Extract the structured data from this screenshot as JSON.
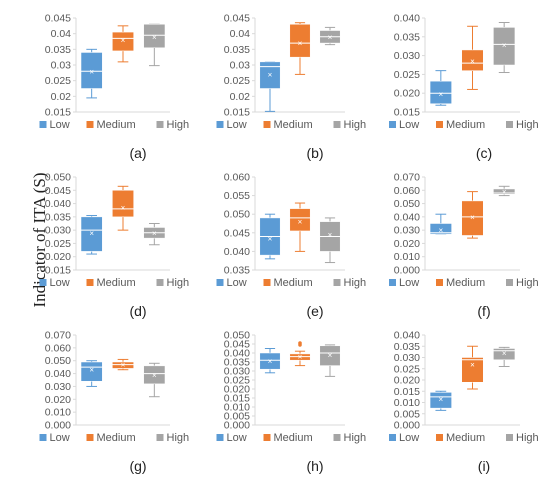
{
  "figure": {
    "y_axis_label": "Indicator of ITA (S)",
    "legend": [
      "Low",
      "Medium",
      "High"
    ]
  },
  "colors": {
    "Low": "#5b9bd5",
    "Medium": "#ed7d31",
    "High": "#a5a5a5",
    "axis": "#d9d9d9",
    "text": "#595959"
  },
  "chart_data": [
    {
      "type": "boxplot",
      "panel_label": "(a)",
      "categories": [
        "Low",
        "Medium",
        "High"
      ],
      "ylim": [
        0.015,
        0.045
      ],
      "yticks": [
        "0.015",
        "0.02",
        "0.025",
        "0.03",
        "0.035",
        "0.04",
        "0.045"
      ],
      "boxes": [
        {
          "name": "Low",
          "min": 0.0195,
          "q1": 0.0225,
          "median": 0.028,
          "q3": 0.034,
          "max": 0.035,
          "mean": 0.028
        },
        {
          "name": "Medium",
          "min": 0.031,
          "q1": 0.0345,
          "median": 0.0385,
          "q3": 0.0405,
          "max": 0.0425,
          "mean": 0.038
        },
        {
          "name": "High",
          "min": 0.0298,
          "q1": 0.0355,
          "median": 0.0395,
          "q3": 0.043,
          "max": 0.043,
          "mean": 0.039
        }
      ]
    },
    {
      "type": "boxplot",
      "panel_label": "(b)",
      "categories": [
        "Low",
        "Medium",
        "High"
      ],
      "ylim": [
        0.015,
        0.045
      ],
      "yticks": [
        "0.015",
        "0.02",
        "0.025",
        "0.03",
        "0.035",
        "0.04",
        "0.045"
      ],
      "boxes": [
        {
          "name": "Low",
          "min": 0.0152,
          "q1": 0.0225,
          "median": 0.0295,
          "q3": 0.031,
          "max": 0.031,
          "mean": 0.027
        },
        {
          "name": "Medium",
          "min": 0.027,
          "q1": 0.0325,
          "median": 0.037,
          "q3": 0.043,
          "max": 0.0435,
          "mean": 0.037
        },
        {
          "name": "High",
          "min": 0.0365,
          "q1": 0.037,
          "median": 0.039,
          "q3": 0.041,
          "max": 0.042,
          "mean": 0.039
        }
      ]
    },
    {
      "type": "boxplot",
      "panel_label": "(c)",
      "categories": [
        "Low",
        "Medium",
        "High"
      ],
      "ylim": [
        0.015,
        0.04
      ],
      "yticks": [
        "0.015",
        "0.020",
        "0.025",
        "0.030",
        "0.035",
        "0.040"
      ],
      "boxes": [
        {
          "name": "Low",
          "min": 0.0168,
          "q1": 0.0172,
          "median": 0.02,
          "q3": 0.0232,
          "max": 0.026,
          "mean": 0.0198
        },
        {
          "name": "Medium",
          "min": 0.021,
          "q1": 0.026,
          "median": 0.028,
          "q3": 0.0315,
          "max": 0.0378,
          "mean": 0.0285
        },
        {
          "name": "High",
          "min": 0.0255,
          "q1": 0.0275,
          "median": 0.033,
          "q3": 0.0375,
          "max": 0.0388,
          "mean": 0.0328
        }
      ]
    },
    {
      "type": "boxplot",
      "panel_label": "(d)",
      "categories": [
        "Low",
        "Medium",
        "High"
      ],
      "ylim": [
        0.015,
        0.05
      ],
      "yticks": [
        "0.015",
        "0.020",
        "0.025",
        "0.030",
        "0.035",
        "0.040",
        "0.045",
        "0.050"
      ],
      "boxes": [
        {
          "name": "Low",
          "min": 0.021,
          "q1": 0.022,
          "median": 0.03,
          "q3": 0.035,
          "max": 0.0355,
          "mean": 0.029
        },
        {
          "name": "Medium",
          "min": 0.03,
          "q1": 0.035,
          "median": 0.038,
          "q3": 0.045,
          "max": 0.0465,
          "mean": 0.0385
        },
        {
          "name": "High",
          "min": 0.0245,
          "q1": 0.027,
          "median": 0.029,
          "q3": 0.031,
          "max": 0.0325,
          "mean": 0.029
        }
      ]
    },
    {
      "type": "boxplot",
      "panel_label": "(e)",
      "categories": [
        "Low",
        "Medium",
        "High"
      ],
      "ylim": [
        0.035,
        0.06
      ],
      "yticks": [
        "0.035",
        "0.040",
        "0.045",
        "0.050",
        "0.055",
        "0.060"
      ],
      "boxes": [
        {
          "name": "Low",
          "min": 0.038,
          "q1": 0.039,
          "median": 0.044,
          "q3": 0.049,
          "max": 0.05,
          "mean": 0.0435
        },
        {
          "name": "Medium",
          "min": 0.04,
          "q1": 0.0455,
          "median": 0.049,
          "q3": 0.0515,
          "max": 0.053,
          "mean": 0.048
        },
        {
          "name": "High",
          "min": 0.037,
          "q1": 0.04,
          "median": 0.044,
          "q3": 0.048,
          "max": 0.049,
          "mean": 0.0445
        }
      ]
    },
    {
      "type": "boxplot",
      "panel_label": "(f)",
      "categories": [
        "Low",
        "Medium",
        "High"
      ],
      "ylim": [
        0.0,
        0.07
      ],
      "yticks": [
        "0.000",
        "0.010",
        "0.020",
        "0.030",
        "0.040",
        "0.050",
        "0.060",
        "0.070"
      ],
      "boxes": [
        {
          "name": "Low",
          "min": 0.027,
          "q1": 0.027,
          "median": 0.028,
          "q3": 0.035,
          "max": 0.042,
          "mean": 0.03
        },
        {
          "name": "Medium",
          "min": 0.024,
          "q1": 0.026,
          "median": 0.04,
          "q3": 0.052,
          "max": 0.059,
          "mean": 0.04
        },
        {
          "name": "High",
          "min": 0.056,
          "q1": 0.057,
          "median": 0.058,
          "q3": 0.061,
          "max": 0.063,
          "mean": 0.059
        }
      ]
    },
    {
      "type": "boxplot",
      "panel_label": "(g)",
      "categories": [
        "Low",
        "Medium",
        "High"
      ],
      "ylim": [
        0.0,
        0.07
      ],
      "yticks": [
        "0.000",
        "0.010",
        "0.020",
        "0.030",
        "0.040",
        "0.050",
        "0.060",
        "0.070"
      ],
      "boxes": [
        {
          "name": "Low",
          "min": 0.03,
          "q1": 0.034,
          "median": 0.045,
          "q3": 0.049,
          "max": 0.05,
          "mean": 0.043
        },
        {
          "name": "Medium",
          "min": 0.043,
          "q1": 0.044,
          "median": 0.047,
          "q3": 0.049,
          "max": 0.051,
          "mean": 0.047
        },
        {
          "name": "High",
          "min": 0.022,
          "q1": 0.032,
          "median": 0.04,
          "q3": 0.046,
          "max": 0.048,
          "mean": 0.039
        }
      ]
    },
    {
      "type": "boxplot",
      "panel_label": "(h)",
      "categories": [
        "Low",
        "Medium",
        "High"
      ],
      "ylim": [
        0.0,
        0.05
      ],
      "yticks": [
        "0.000",
        "0.005",
        "0.010",
        "0.015",
        "0.020",
        "0.025",
        "0.030",
        "0.035",
        "0.040",
        "0.045",
        "0.050"
      ],
      "boxes": [
        {
          "name": "Low",
          "min": 0.029,
          "q1": 0.031,
          "median": 0.036,
          "q3": 0.04,
          "max": 0.0425,
          "mean": 0.0355
        },
        {
          "name": "Medium",
          "min": 0.033,
          "q1": 0.036,
          "median": 0.038,
          "q3": 0.0395,
          "max": 0.041,
          "mean": 0.038,
          "outliers": [
            0.0445,
            0.0455
          ]
        },
        {
          "name": "High",
          "min": 0.027,
          "q1": 0.033,
          "median": 0.04,
          "q3": 0.044,
          "max": 0.0445,
          "mean": 0.039
        }
      ]
    },
    {
      "type": "boxplot",
      "panel_label": "(i)",
      "categories": [
        "Low",
        "Medium",
        "High"
      ],
      "ylim": [
        0.0,
        0.04
      ],
      "yticks": [
        "0.000",
        "0.005",
        "0.010",
        "0.015",
        "0.020",
        "0.025",
        "0.030",
        "0.035",
        "0.040"
      ],
      "boxes": [
        {
          "name": "Low",
          "min": 0.0065,
          "q1": 0.0075,
          "median": 0.0125,
          "q3": 0.0145,
          "max": 0.015,
          "mean": 0.0115
        },
        {
          "name": "Medium",
          "min": 0.016,
          "q1": 0.019,
          "median": 0.029,
          "q3": 0.03,
          "max": 0.035,
          "mean": 0.027
        },
        {
          "name": "High",
          "min": 0.026,
          "q1": 0.029,
          "median": 0.033,
          "q3": 0.034,
          "max": 0.0345,
          "mean": 0.032
        }
      ]
    }
  ]
}
